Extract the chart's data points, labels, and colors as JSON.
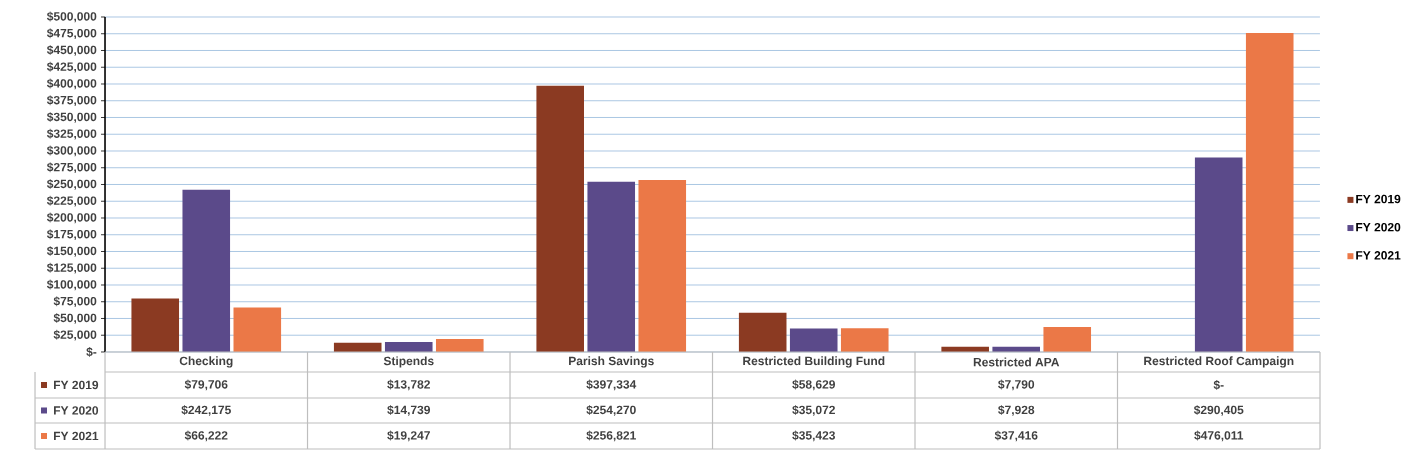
{
  "chart_data": {
    "type": "bar",
    "categories": [
      "Checking",
      "Stipends",
      "Parish Savings",
      "Restricted Building Fund",
      "Restricted APA",
      "Restricted  Roof Campaign"
    ],
    "series": [
      {
        "name": "FY 2019",
        "color": "#8b3a22",
        "values": [
          79706,
          13782,
          397334,
          58629,
          7790,
          0
        ],
        "value_labels": [
          "$79,706",
          "$13,782",
          "$397,334",
          "$58,629",
          "$7,790",
          "$-"
        ]
      },
      {
        "name": "FY 2020",
        "color": "#5b4a8a",
        "values": [
          242175,
          14739,
          254270,
          35072,
          7928,
          290405
        ],
        "value_labels": [
          "$242,175",
          "$14,739",
          "$254,270",
          "$35,072",
          "$7,928",
          "$290,405"
        ]
      },
      {
        "name": "FY 2021",
        "color": "#eb7847",
        "values": [
          66222,
          19247,
          256821,
          35423,
          37416,
          476011
        ],
        "value_labels": [
          "$66,222",
          "$19,247",
          "$256,821",
          "$35,423",
          "$37,416",
          "$476,011"
        ]
      }
    ],
    "ylim": [
      0,
      500000
    ],
    "yticks": [
      {
        "value": 0,
        "label": "$-"
      },
      {
        "value": 25000,
        "label": "$25,000"
      },
      {
        "value": 50000,
        "label": "$50,000"
      },
      {
        "value": 75000,
        "label": "$75,000"
      },
      {
        "value": 100000,
        "label": "$100,000"
      },
      {
        "value": 125000,
        "label": "$125,000"
      },
      {
        "value": 150000,
        "label": "$150,000"
      },
      {
        "value": 175000,
        "label": "$175,000"
      },
      {
        "value": 200000,
        "label": "$200,000"
      },
      {
        "value": 225000,
        "label": "$225,000"
      },
      {
        "value": 250000,
        "label": "$250,000"
      },
      {
        "value": 275000,
        "label": "$275,000"
      },
      {
        "value": 300000,
        "label": "$300,000"
      },
      {
        "value": 325000,
        "label": "$325,000"
      },
      {
        "value": 350000,
        "label": "$350,000"
      },
      {
        "value": 375000,
        "label": "$375,000"
      },
      {
        "value": 400000,
        "label": "$400,000"
      },
      {
        "value": 425000,
        "label": "$425,000"
      },
      {
        "value": 450000,
        "label": "$450,000"
      },
      {
        "value": 475000,
        "label": "$475,000"
      },
      {
        "value": 500000,
        "label": "$500,000"
      }
    ],
    "grid": "y",
    "legend": "right"
  }
}
